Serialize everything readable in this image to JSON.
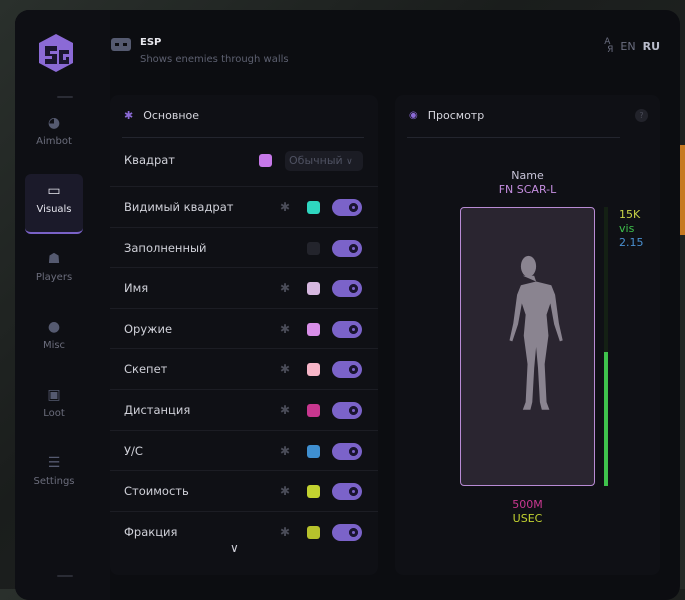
{
  "header": {
    "title": "ESP",
    "subtitle": "Shows enemies through walls",
    "lang_icon": "translate-icon",
    "languages": [
      "EN",
      "RU"
    ],
    "active_language": "RU"
  },
  "sidebar": {
    "items": [
      {
        "label": "Aimbot",
        "icon": "alien-icon"
      },
      {
        "label": "Visuals",
        "icon": "vr-goggles-icon",
        "active": true
      },
      {
        "label": "Players",
        "icon": "users-icon"
      },
      {
        "label": "Misc",
        "icon": "dots-icon"
      },
      {
        "label": "Loot",
        "icon": "toolbox-icon"
      },
      {
        "label": "Settings",
        "icon": "list-icon"
      }
    ]
  },
  "main": {
    "title": "Основное",
    "box_row": {
      "label": "Квадрат",
      "color": "#c678e8",
      "mode": "Обычный"
    },
    "rows": [
      {
        "label": "Видимый квадрат",
        "color": "#2fd6c0",
        "gear": true,
        "on": true
      },
      {
        "label": "Заполненный",
        "color": "#23242c",
        "gear": false,
        "on": true
      },
      {
        "label": "Имя",
        "color": "#d6b8e0",
        "gear": true,
        "on": true
      },
      {
        "label": "Оружие",
        "color": "#d88ee8",
        "gear": true,
        "on": true
      },
      {
        "label": "Скепет",
        "color": "#f7b6c8",
        "gear": true,
        "on": true
      },
      {
        "label": "Дистанция",
        "color": "#c8378f",
        "gear": true,
        "on": true
      },
      {
        "label": "У/С",
        "color": "#3f8fd0",
        "gear": true,
        "on": true
      },
      {
        "label": "Стоимость",
        "color": "#c2d230",
        "gear": true,
        "on": true
      },
      {
        "label": "Фракция",
        "color": "#b7c22c",
        "gear": true,
        "on": true
      }
    ]
  },
  "preview": {
    "title": "Просмотр",
    "help": "?",
    "name": "Name",
    "weapon": "FN SCAR-L",
    "value": "15K",
    "visibility": "vis",
    "kd": "2.15",
    "distance": "500M",
    "faction": "USEC",
    "health_percent": 48
  }
}
